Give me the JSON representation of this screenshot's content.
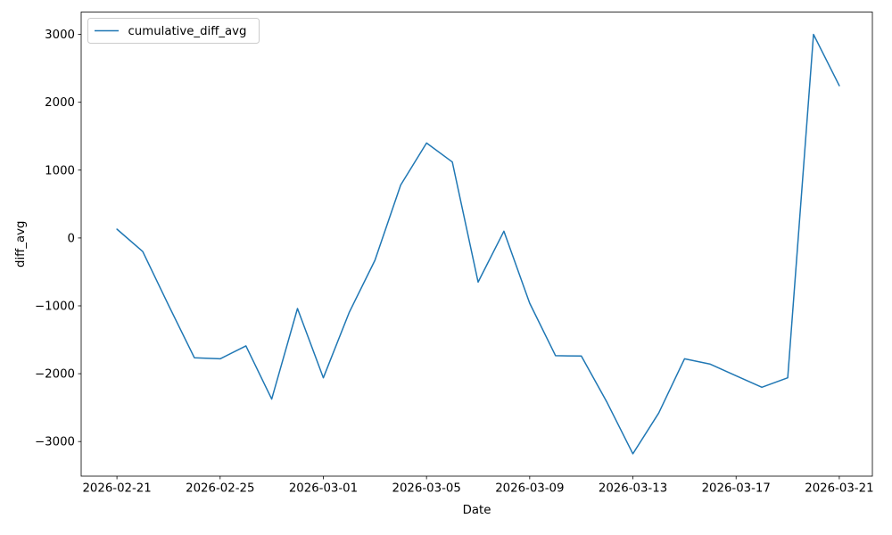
{
  "chart_data": {
    "type": "line",
    "title": "",
    "xlabel": "Date",
    "ylabel": "diff_avg",
    "grid": false,
    "background": "#ffffff",
    "line_color": "#1f77b4",
    "spine_color": "#000000",
    "legend": {
      "position": "upper left",
      "entries": [
        {
          "label": "cumulative_diff_avg",
          "color": "#1f77b4"
        }
      ]
    },
    "x": [
      "2026-02-21",
      "2026-02-22",
      "2026-02-23",
      "2026-02-24",
      "2026-02-25",
      "2026-02-26",
      "2026-02-27",
      "2026-02-28",
      "2026-03-01",
      "2026-03-02",
      "2026-03-03",
      "2026-03-04",
      "2026-03-05",
      "2026-03-06",
      "2026-03-07",
      "2026-03-08",
      "2026-03-09",
      "2026-03-10",
      "2026-03-11",
      "2026-03-12",
      "2026-03-13",
      "2026-03-14",
      "2026-03-15",
      "2026-03-16",
      "2026-03-17",
      "2026-03-18",
      "2026-03-19",
      "2026-03-20",
      "2026-03-21"
    ],
    "series": [
      {
        "name": "cumulative_diff_avg",
        "values": [
          130,
          -200,
          -990,
          -1765,
          -1780,
          -1590,
          -2375,
          -1040,
          -2060,
          -1100,
          -330,
          780,
          1400,
          1120,
          -650,
          100,
          -960,
          -1735,
          -1740,
          -2425,
          -3180,
          -2580,
          -1780,
          -1860,
          -2030,
          -2200,
          -2060,
          3000,
          2245
        ]
      }
    ],
    "x_ticks": [
      {
        "date": "2026-02-21",
        "label": "2026-02-21"
      },
      {
        "date": "2026-02-25",
        "label": "2026-02-25"
      },
      {
        "date": "2026-03-01",
        "label": "2026-03-01"
      },
      {
        "date": "2026-03-05",
        "label": "2026-03-05"
      },
      {
        "date": "2026-03-09",
        "label": "2026-03-09"
      },
      {
        "date": "2026-03-13",
        "label": "2026-03-13"
      },
      {
        "date": "2026-03-17",
        "label": "2026-03-17"
      },
      {
        "date": "2026-03-21",
        "label": "2026-03-21"
      }
    ],
    "y_ticks": [
      {
        "v": 3000,
        "label": "3000"
      },
      {
        "v": 2000,
        "label": "2000"
      },
      {
        "v": 1000,
        "label": "1000"
      },
      {
        "v": 0,
        "label": "0"
      },
      {
        "v": -1000,
        "label": "−1000"
      },
      {
        "v": -2000,
        "label": "−2000"
      },
      {
        "v": -3000,
        "label": "−3000"
      }
    ],
    "ylim": [
      -3510,
      3330
    ]
  }
}
